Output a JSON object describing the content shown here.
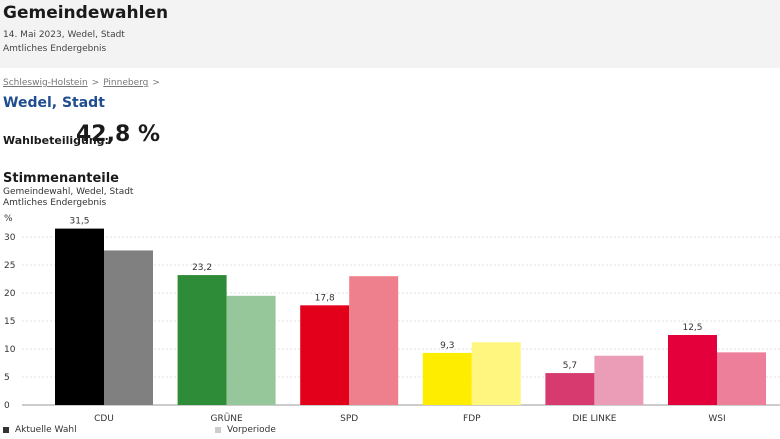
{
  "header": {
    "title": "Gemeindewahlen",
    "date_line": "14. Mai 2023, Wedel, Stadt",
    "status": "Amtliches Endergebnis"
  },
  "breadcrumb": {
    "items": [
      "Schleswig-Holstein",
      "Pinneberg"
    ],
    "separator": ">"
  },
  "place": "Wedel, Stadt",
  "turnout": {
    "label": "Wahlbeteiligung:",
    "value": "42,8 %"
  },
  "chart_section": {
    "title": "Stimmenanteile",
    "subtitle1": "Gemeindewahl, Wedel, Stadt",
    "subtitle2": "Amtliches Endergebnis"
  },
  "chart_data": {
    "type": "bar",
    "ylabel": "%",
    "ylim": [
      0,
      33
    ],
    "yticks": [
      0,
      5,
      10,
      15,
      20,
      25,
      30
    ],
    "grid": true,
    "legend_position": "bottom-left",
    "categories": [
      "CDU",
      "GRÜNE",
      "SPD",
      "FDP",
      "DIE LINKE",
      "WSI"
    ],
    "series": [
      {
        "name": "Aktuelle Wahl",
        "values": [
          31.5,
          23.2,
          17.8,
          9.3,
          5.7,
          12.5
        ],
        "labels": [
          "31,5",
          "23,2",
          "17,8",
          "9,3",
          "5,7",
          "12,5"
        ],
        "colors": [
          "#000000",
          "#2e8b37",
          "#e3001b",
          "#ffed00",
          "#d63a6e",
          "#e4003a"
        ]
      },
      {
        "name": "Vorperiode",
        "values": [
          27.6,
          19.5,
          23.0,
          11.2,
          8.8,
          9.4
        ],
        "colors": [
          "#808080",
          "#95c79b",
          "#ee7f8c",
          "#fff67f",
          "#eb9cb6",
          "#ee7f9b"
        ]
      }
    ],
    "legend_colors": [
      "#333333",
      "#cccccc"
    ]
  }
}
